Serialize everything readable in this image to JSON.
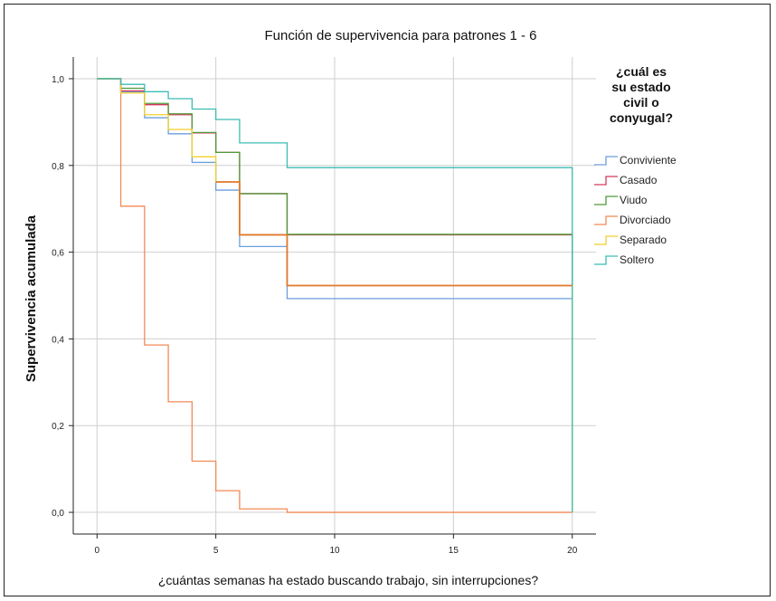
{
  "chart_data": {
    "type": "line",
    "step": true,
    "title": "Función de supervivencia para patrones 1 - 6",
    "xlabel": "¿cuántas semanas ha estado buscando trabajo, sin interrupciones?",
    "ylabel": "Supervivencia acumulada",
    "xlim": [
      -1,
      21
    ],
    "ylim": [
      -0.05,
      1.05
    ],
    "xticks": [
      0,
      5,
      10,
      15,
      20
    ],
    "yticks": [
      0.0,
      0.2,
      0.4,
      0.6,
      0.8,
      1.0
    ],
    "xtick_labels": [
      "0",
      "5",
      "10",
      "15",
      "20"
    ],
    "ytick_labels": [
      "0,0",
      "0,2",
      "0,4",
      "0,6",
      "0,8",
      "1,0"
    ],
    "grid": true,
    "legend_position": "right",
    "legend_title_lines": [
      "¿cuál es",
      "su estado",
      "civil o",
      "conyugal?"
    ],
    "series": [
      {
        "name": "Conviviente",
        "color": "#6a9fdc",
        "x": [
          0,
          1,
          2,
          3,
          4,
          5,
          6,
          8,
          20,
          20
        ],
        "y": [
          1.0,
          0.97,
          0.91,
          0.873,
          0.807,
          0.743,
          0.613,
          0.493,
          0.493,
          0.0
        ]
      },
      {
        "name": "Casado",
        "color": "#d6395d",
        "x": [
          0,
          1,
          2,
          3,
          4,
          5,
          6,
          8,
          20,
          20
        ],
        "y": [
          1.0,
          0.972,
          0.94,
          0.917,
          0.875,
          0.83,
          0.735,
          0.64,
          0.64,
          0.0
        ]
      },
      {
        "name": "Viudo",
        "color": "#4e9a3a",
        "x": [
          0,
          1,
          2,
          3,
          4,
          5,
          6,
          8,
          20,
          20
        ],
        "y": [
          1.0,
          0.978,
          0.943,
          0.919,
          0.876,
          0.83,
          0.735,
          0.641,
          0.641,
          0.0
        ]
      },
      {
        "name": "Divorciado",
        "color": "#f28a55",
        "x": [
          0,
          1,
          2,
          3,
          4,
          5,
          6,
          8,
          20
        ],
        "y": [
          1.0,
          0.706,
          0.386,
          0.255,
          0.118,
          0.05,
          0.008,
          0.0,
          0.0
        ]
      },
      {
        "name": "Separado",
        "color": "#f2cf2c",
        "x": [
          0,
          1,
          2,
          3,
          4,
          5,
          6,
          8,
          20,
          20
        ],
        "y": [
          1.0,
          0.967,
          0.917,
          0.883,
          0.82,
          0.762,
          0.64,
          0.523,
          0.523,
          0.0
        ]
      },
      {
        "name": "Soltero",
        "color": "#3cbcb4",
        "x": [
          0,
          1,
          2,
          3,
          4,
          5,
          6,
          8,
          20,
          20
        ],
        "y": [
          1.0,
          0.987,
          0.97,
          0.954,
          0.93,
          0.906,
          0.852,
          0.795,
          0.795,
          0.0
        ]
      }
    ],
    "extra_lines": [
      {
        "color": "#e07a2e",
        "x": [
          5,
          6,
          6,
          8,
          8,
          20
        ],
        "y": [
          0.762,
          0.762,
          0.64,
          0.64,
          0.523,
          0.523
        ]
      }
    ]
  }
}
